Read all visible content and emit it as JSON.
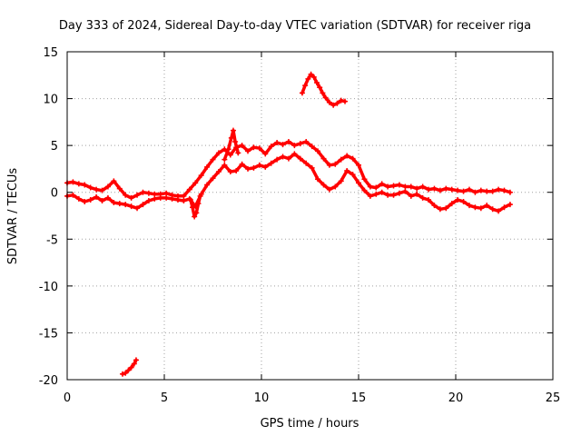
{
  "chart_data": {
    "type": "scatter",
    "title": "Day 333 of 2024, Sidereal Day-to-day VTEC variation (SDTVAR) for receiver riga",
    "xlabel": "GPS time / hours",
    "ylabel": "SDTVAR / TECUs",
    "xlim": [
      0,
      25
    ],
    "ylim": [
      -20,
      15
    ],
    "xticks": [
      0,
      5,
      10,
      15,
      20,
      25
    ],
    "yticks": [
      -20,
      -15,
      -10,
      -5,
      0,
      5,
      10,
      15
    ],
    "grid": true,
    "color": "#ff0000",
    "series": [
      {
        "name": "main-band-upper",
        "x": [
          0.0,
          0.3,
          0.6,
          0.9,
          1.2,
          1.5,
          1.8,
          2.1,
          2.4,
          2.7,
          3.0,
          3.3,
          3.6,
          3.9,
          4.2,
          4.5,
          4.8,
          5.1,
          5.4,
          5.7,
          6.0,
          6.3,
          6.6,
          6.9,
          7.2,
          7.5,
          7.8,
          8.1,
          8.4,
          8.7,
          9.0,
          9.3,
          9.6,
          9.9,
          10.2,
          10.5,
          10.8,
          11.1,
          11.4,
          11.7,
          12.0,
          12.3,
          12.6,
          12.9,
          13.2,
          13.5,
          13.8,
          14.1,
          14.4,
          14.7,
          15.0,
          15.3,
          15.6,
          15.9,
          16.2,
          16.5,
          16.8,
          17.1,
          17.4,
          17.7,
          18.0,
          18.3,
          18.6,
          18.9,
          19.2,
          19.5,
          19.8,
          20.1,
          20.4,
          20.7,
          21.0,
          21.3,
          21.6,
          21.9,
          22.2,
          22.5,
          22.8
        ],
        "y": [
          1.0,
          1.1,
          0.9,
          0.8,
          0.5,
          0.3,
          0.2,
          0.6,
          1.2,
          0.4,
          -0.3,
          -0.6,
          -0.3,
          0.0,
          -0.1,
          -0.2,
          -0.2,
          -0.1,
          -0.3,
          -0.4,
          -0.4,
          0.3,
          1.0,
          1.8,
          2.7,
          3.5,
          4.2,
          4.6,
          4.0,
          4.8,
          5.0,
          4.4,
          4.8,
          4.7,
          4.1,
          4.9,
          5.3,
          5.1,
          5.4,
          5.0,
          5.2,
          5.4,
          4.9,
          4.4,
          3.6,
          2.9,
          3.0,
          3.5,
          3.9,
          3.6,
          2.9,
          1.4,
          0.6,
          0.5,
          0.9,
          0.6,
          0.7,
          0.8,
          0.6,
          0.6,
          0.4,
          0.6,
          0.3,
          0.4,
          0.2,
          0.4,
          0.3,
          0.2,
          0.1,
          0.3,
          0.0,
          0.2,
          0.1,
          0.1,
          0.3,
          0.2,
          0.0
        ]
      },
      {
        "name": "main-band-lower",
        "x": [
          0.0,
          0.3,
          0.6,
          0.9,
          1.2,
          1.5,
          1.8,
          2.1,
          2.4,
          2.7,
          3.0,
          3.3,
          3.6,
          3.9,
          4.2,
          4.5,
          4.8,
          5.1,
          5.4,
          5.7,
          6.0,
          6.3,
          6.6,
          6.9,
          7.2,
          7.5,
          7.8,
          8.1,
          8.4,
          8.7,
          9.0,
          9.3,
          9.6,
          9.9,
          10.2,
          10.5,
          10.8,
          11.1,
          11.4,
          11.7,
          12.0,
          12.3,
          12.6,
          12.9,
          13.2,
          13.5,
          13.8,
          14.1,
          14.4,
          14.7,
          15.0,
          15.3,
          15.6,
          15.9,
          16.2,
          16.5,
          16.8,
          17.1,
          17.4,
          17.7,
          18.0,
          18.3,
          18.6,
          18.9,
          19.2,
          19.5,
          19.8,
          20.1,
          20.4,
          20.7,
          21.0,
          21.3,
          21.6,
          21.9,
          22.2,
          22.5,
          22.8
        ],
        "y": [
          -0.4,
          -0.3,
          -0.7,
          -1.0,
          -0.8,
          -0.5,
          -0.9,
          -0.6,
          -1.1,
          -1.2,
          -1.3,
          -1.5,
          -1.7,
          -1.3,
          -0.9,
          -0.7,
          -0.6,
          -0.6,
          -0.7,
          -0.8,
          -0.9,
          -0.7,
          -1.5,
          -0.2,
          0.8,
          1.5,
          2.2,
          2.9,
          2.2,
          2.3,
          3.0,
          2.5,
          2.6,
          2.9,
          2.7,
          3.1,
          3.5,
          3.8,
          3.6,
          4.1,
          3.6,
          3.1,
          2.6,
          1.4,
          0.8,
          0.3,
          0.6,
          1.2,
          2.3,
          1.9,
          1.0,
          0.2,
          -0.4,
          -0.2,
          0.0,
          -0.3,
          -0.3,
          -0.1,
          0.1,
          -0.4,
          -0.2,
          -0.6,
          -0.8,
          -1.4,
          -1.8,
          -1.7,
          -1.2,
          -0.8,
          -1.0,
          -1.4,
          -1.6,
          -1.7,
          -1.4,
          -1.8,
          -2.0,
          -1.6,
          -1.3
        ]
      },
      {
        "name": "dip-at-6.5h",
        "x": [
          6.35,
          6.45,
          6.55,
          6.65,
          6.75,
          6.85
        ],
        "y": [
          -0.8,
          -1.6,
          -2.6,
          -2.2,
          -1.2,
          -0.4
        ]
      },
      {
        "name": "spike-at-8.5h",
        "x": [
          8.1,
          8.3,
          8.45,
          8.55,
          8.65,
          8.8
        ],
        "y": [
          3.5,
          4.6,
          5.8,
          6.6,
          5.4,
          4.2
        ]
      },
      {
        "name": "high-segment",
        "x": [
          12.1,
          12.25,
          12.4,
          12.55,
          12.7,
          12.85,
          13.0,
          13.15,
          13.3,
          13.5,
          13.7,
          13.9,
          14.1,
          14.3
        ],
        "y": [
          10.6,
          11.4,
          12.1,
          12.6,
          12.3,
          11.7,
          11.2,
          10.6,
          10.1,
          9.6,
          9.3,
          9.5,
          9.8,
          9.7
        ]
      },
      {
        "name": "low-segment",
        "x": [
          2.85,
          3.0,
          3.15,
          3.3,
          3.45,
          3.55
        ],
        "y": [
          -19.4,
          -19.3,
          -19.0,
          -18.7,
          -18.3,
          -17.9
        ]
      }
    ]
  }
}
